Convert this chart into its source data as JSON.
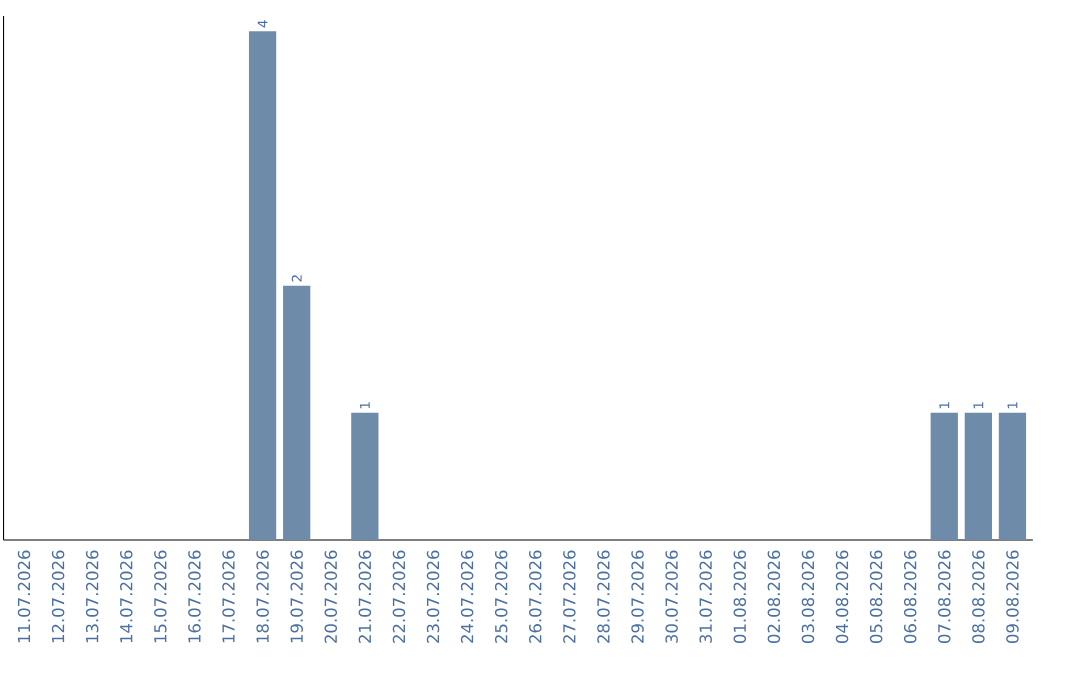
{
  "chart_data": {
    "type": "bar",
    "categories": [
      "11.07.2026",
      "12.07.2026",
      "13.07.2026",
      "14.07.2026",
      "15.07.2026",
      "16.07.2026",
      "17.07.2026",
      "18.07.2026",
      "19.07.2026",
      "20.07.2026",
      "21.07.2026",
      "22.07.2026",
      "23.07.2026",
      "24.07.2026",
      "25.07.2026",
      "26.07.2026",
      "27.07.2026",
      "28.07.2026",
      "29.07.2026",
      "30.07.2026",
      "31.07.2026",
      "01.08.2026",
      "02.08.2026",
      "03.08.2026",
      "04.08.2026",
      "05.08.2026",
      "06.08.2026",
      "07.08.2026",
      "08.08.2026",
      "09.08.2026"
    ],
    "values": [
      0,
      0,
      0,
      0,
      0,
      0,
      0,
      4,
      2,
      0,
      1,
      0,
      0,
      0,
      0,
      0,
      0,
      0,
      0,
      0,
      0,
      0,
      0,
      0,
      0,
      0,
      0,
      1,
      1,
      1
    ],
    "value_labels": [
      null,
      null,
      null,
      null,
      null,
      null,
      null,
      "4",
      "2",
      null,
      "1",
      null,
      null,
      null,
      null,
      null,
      null,
      null,
      null,
      null,
      null,
      null,
      null,
      null,
      null,
      null,
      null,
      "1",
      "1",
      "1"
    ],
    "color": "#6e8caa"
  }
}
